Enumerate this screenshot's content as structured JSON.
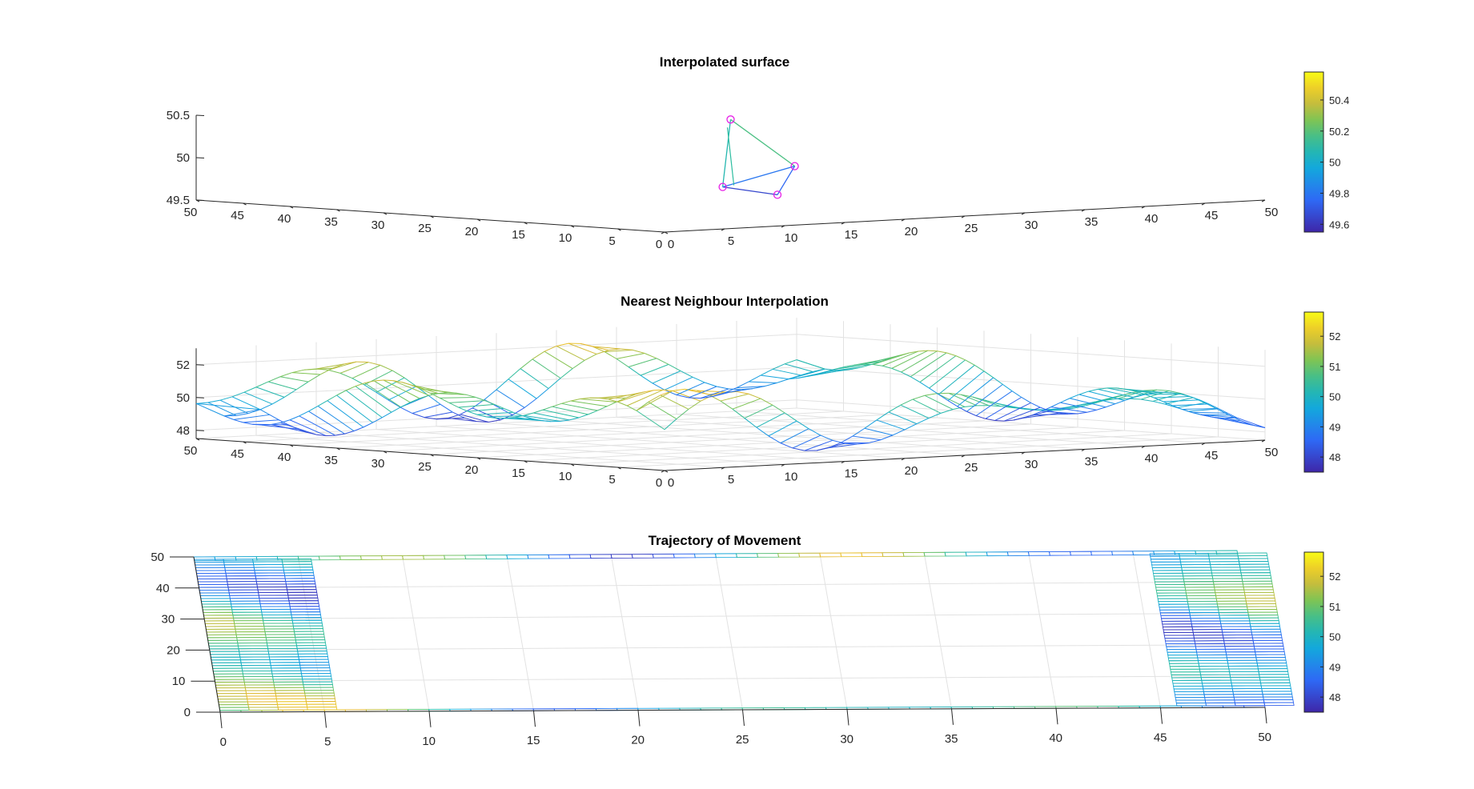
{
  "chart_data": [
    {
      "type": "surface-mesh",
      "title": "Interpolated surface",
      "x_ticks": [
        "0",
        "5",
        "10",
        "15",
        "20",
        "25",
        "30",
        "35",
        "40",
        "45",
        "50"
      ],
      "y_ticks": [
        "0",
        "5",
        "10",
        "15",
        "20",
        "25",
        "30",
        "35",
        "40",
        "45",
        "50"
      ],
      "z_ticks": [
        "49.5",
        "50",
        "50.5"
      ],
      "zlim": [
        49.5,
        50.5
      ],
      "grid": false,
      "colorbar": {
        "ticks": [
          "49.6",
          "49.8",
          "50",
          "50.2",
          "50.4"
        ],
        "range": [
          49.55,
          50.58
        ]
      },
      "points": [
        {
          "x": 25,
          "y": 25,
          "z": 50.45
        },
        {
          "x": 22,
          "y": 22,
          "z": 49.7
        },
        {
          "x": 28,
          "y": 22,
          "z": 49.9
        },
        {
          "x": 25,
          "y": 20,
          "z": 49.6
        }
      ]
    },
    {
      "type": "surface-mesh",
      "title": "Nearest Neighbour Interpolation",
      "x_ticks": [
        "0",
        "5",
        "10",
        "15",
        "20",
        "25",
        "30",
        "35",
        "40",
        "45",
        "50"
      ],
      "y_ticks": [
        "0",
        "5",
        "10",
        "15",
        "20",
        "25",
        "30",
        "35",
        "40",
        "45",
        "50"
      ],
      "z_ticks": [
        "48",
        "50",
        "52"
      ],
      "zlim": [
        47.5,
        53
      ],
      "grid": true,
      "colorbar": {
        "ticks": [
          "48",
          "49",
          "50",
          "51",
          "52"
        ],
        "range": [
          47.5,
          52.8
        ]
      }
    },
    {
      "type": "surface-mesh",
      "title": "Trajectory of Movement",
      "x_ticks": [
        "0",
        "5",
        "10",
        "15",
        "20",
        "25",
        "30",
        "35",
        "40",
        "45",
        "50"
      ],
      "y_ticks": [
        "0",
        "10",
        "20",
        "30",
        "40",
        "50"
      ],
      "grid": true,
      "colorbar": {
        "ticks": [
          "48",
          "49",
          "50",
          "51",
          "52"
        ],
        "range": [
          47.5,
          52.8
        ]
      }
    }
  ]
}
